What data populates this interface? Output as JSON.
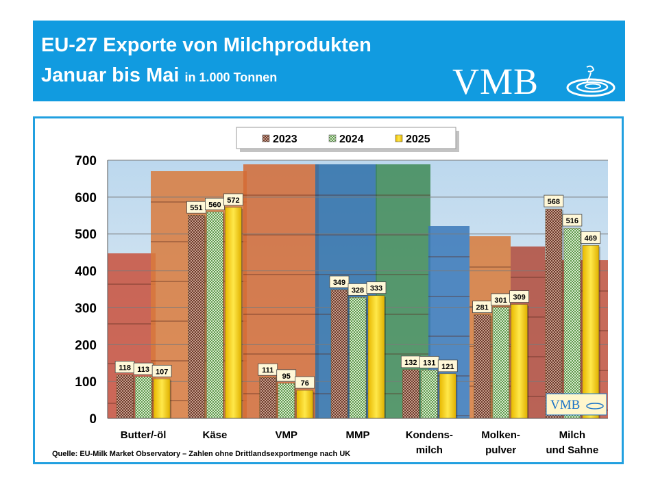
{
  "header": {
    "title_line1": "EU-27 Exporte von Milchprodukten",
    "title_line2": "Januar bis Mai",
    "title_unit": "in 1.000 Tonnen",
    "logo_text": "VMB",
    "background": "#119be0"
  },
  "source": "Quelle: EU-Milk Market Observatory – Zahlen ohne Drittlandsexportmenge nach UK",
  "inset_logo": "VMB",
  "chart_data": {
    "type": "bar",
    "categories": [
      "Butter/-öl",
      "Käse",
      "VMP",
      "MMP",
      "Kondens-\nmilch",
      "Molken-\npulver",
      "Milch\nund Sahne"
    ],
    "series": [
      {
        "name": "2023",
        "values": [
          118,
          551,
          111,
          349,
          132,
          281,
          568
        ],
        "color": "#b0786a"
      },
      {
        "name": "2024",
        "values": [
          113,
          560,
          95,
          328,
          131,
          301,
          516
        ],
        "color": "#8fbf74"
      },
      {
        "name": "2025",
        "values": [
          107,
          572,
          76,
          333,
          121,
          309,
          469
        ],
        "color": "#f2d21c"
      }
    ],
    "ylim": [
      0,
      700
    ],
    "yticks": [
      0,
      100,
      200,
      300,
      400,
      500,
      600,
      700
    ],
    "grid": true,
    "legend_position": "top-center"
  }
}
